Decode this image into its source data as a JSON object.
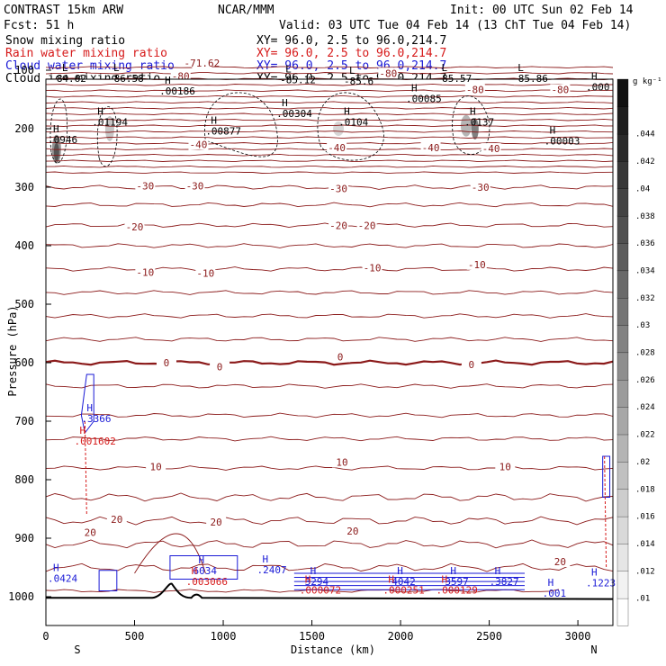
{
  "header": {
    "model": "CONTRAST 15km ARW",
    "org": "NCAR/MMM",
    "init": "Init: 00 UTC Sun 02 Feb 14",
    "fcst": "Fcst:    51 h",
    "valid": "Valid: 03 UTC Tue 04 Feb 14 (13 ChT Tue 04 Feb 14)",
    "lines": [
      {
        "label": "Snow mixing ratio",
        "xy": "XY=  96.0,  2.5 to  96.0,214.7",
        "color": "#000000"
      },
      {
        "label": "Rain water mixing ratio",
        "xy": "XY=  96.0,  2.5 to  96.0,214.7",
        "color": "#d61a1a"
      },
      {
        "label": "Cloud water mixing ratio",
        "xy": "XY=  96.0,  2.5 to  96.0,214.7",
        "color": "#1a1ad6"
      },
      {
        "label": "Cloud ice mixing ratio",
        "xy": "XY=  96.0,  2.5 to  96.0,214.7",
        "color": "#000000"
      }
    ]
  },
  "colorbar": {
    "unit": "g kg⁻¹",
    "ticks": [
      ".01",
      ".012",
      ".014",
      ".016",
      ".018",
      ".02",
      ".022",
      ".024",
      ".026",
      ".028",
      ".03",
      ".032",
      ".034",
      ".036",
      ".038",
      ".04",
      ".042",
      ".044"
    ]
  },
  "chart_data": {
    "type": "contour",
    "xlabel": "Distance (km)",
    "ylabel": "Pressure (hPa)",
    "xlim": [
      0,
      3200
    ],
    "ylim": [
      1050,
      50
    ],
    "xticks": [
      0,
      500,
      1000,
      1500,
      2000,
      2500,
      3000
    ],
    "xtick_labels": [
      "0",
      "500",
      "1000",
      "1500",
      "2000",
      "2500",
      "3000"
    ],
    "yticks": [
      100,
      200,
      300,
      400,
      500,
      600,
      700,
      800,
      900,
      1000
    ],
    "ytick_labels": [
      "100",
      "200",
      "300",
      "400",
      "500",
      "600",
      "700",
      "800",
      "900",
      "1000"
    ],
    "end_labels": {
      "left": "S",
      "right": "N"
    },
    "temperature_contours": [
      {
        "label": "-80",
        "x": 760,
        "p": 110
      },
      {
        "label": "-80",
        "x": 1930,
        "p": 105
      },
      {
        "label": "-80",
        "x": 2420,
        "p": 133
      },
      {
        "label": "-80",
        "x": 2900,
        "p": 133
      },
      {
        "label": "-71.62",
        "x": 880,
        "p": 88
      },
      {
        "label": "-40",
        "x": 860,
        "p": 227
      },
      {
        "label": "-40",
        "x": 1640,
        "p": 232
      },
      {
        "label": "-40",
        "x": 2170,
        "p": 232
      },
      {
        "label": "-40",
        "x": 2510,
        "p": 234
      },
      {
        "label": "-30",
        "x": 560,
        "p": 298
      },
      {
        "label": "-30",
        "x": 840,
        "p": 298
      },
      {
        "label": "-30",
        "x": 1650,
        "p": 302
      },
      {
        "label": "-30",
        "x": 2450,
        "p": 300
      },
      {
        "label": "-20",
        "x": 500,
        "p": 368
      },
      {
        "label": "-20",
        "x": 1650,
        "p": 365
      },
      {
        "label": "-20",
        "x": 1810,
        "p": 365
      },
      {
        "label": "-10",
        "x": 560,
        "p": 445
      },
      {
        "label": "-10",
        "x": 900,
        "p": 447
      },
      {
        "label": "-10",
        "x": 1840,
        "p": 438
      },
      {
        "label": "-10",
        "x": 2430,
        "p": 432
      },
      {
        "label": "0",
        "x": 680,
        "p": 600
      },
      {
        "label": "0",
        "x": 980,
        "p": 607
      },
      {
        "label": "0",
        "x": 1660,
        "p": 590
      },
      {
        "label": "0",
        "x": 2400,
        "p": 603
      },
      {
        "label": "10",
        "x": 620,
        "p": 778
      },
      {
        "label": "10",
        "x": 1670,
        "p": 770
      },
      {
        "label": "10",
        "x": 2590,
        "p": 778
      },
      {
        "label": "20",
        "x": 400,
        "p": 868
      },
      {
        "label": "20",
        "x": 250,
        "p": 890
      },
      {
        "label": "20",
        "x": 960,
        "p": 872
      },
      {
        "label": "20",
        "x": 1730,
        "p": 888
      },
      {
        "label": "20",
        "x": 2900,
        "p": 940
      }
    ],
    "extrema": [
      {
        "type": "L",
        "value": "84.62",
        "x": 60,
        "p": 115,
        "field": "temperature"
      },
      {
        "type": "L",
        "value": "-86.58",
        "x": 350,
        "p": 115,
        "field": "temperature"
      },
      {
        "type": "L",
        "value": "-85.12",
        "x": 1320,
        "p": 118,
        "field": "temperature"
      },
      {
        "type": "L",
        "value": "-85.6",
        "x": 1680,
        "p": 120,
        "field": "temperature"
      },
      {
        "type": "L",
        "value": "-85.57",
        "x": 2200,
        "p": 115,
        "field": "temperature"
      },
      {
        "type": "L",
        "value": "-85.86",
        "x": 2630,
        "p": 115,
        "field": "temperature"
      },
      {
        "type": "H",
        "value": ".00186",
        "x": 640,
        "p": 137,
        "field": "snow"
      },
      {
        "type": "H",
        "value": ".00085",
        "x": 2030,
        "p": 150,
        "field": "snow"
      },
      {
        "type": "H",
        "value": ".000",
        "x": 3100,
        "p": 130,
        "field": "snow"
      },
      {
        "type": "H",
        "value": ".01194",
        "x": 260,
        "p": 190,
        "field": "snow"
      },
      {
        "type": "H",
        "value": ".00304",
        "x": 1300,
        "p": 175,
        "field": "snow"
      },
      {
        "type": "H",
        "value": ".0104",
        "x": 1650,
        "p": 190,
        "field": "snow"
      },
      {
        "type": "H",
        "value": ".0137",
        "x": 2360,
        "p": 190,
        "field": "snow"
      },
      {
        "type": "H",
        "value": ".00877",
        "x": 900,
        "p": 205,
        "field": "snow"
      },
      {
        "type": "H",
        "value": ".0946",
        "x": 0,
        "p": 220,
        "field": "snow"
      },
      {
        "type": "H",
        "value": ".00003",
        "x": 2810,
        "p": 222,
        "field": "snow"
      },
      {
        "type": "H",
        "value": ".3366",
        "x": 200,
        "p": 697,
        "field": "cloud_water"
      },
      {
        "type": "H",
        "value": ".001602",
        "x": 160,
        "p": 735,
        "field": "rain"
      },
      {
        "type": "H",
        "value": "6034",
        "x": 830,
        "p": 957,
        "field": "cloud_water"
      },
      {
        "type": "H",
        "value": ".003066",
        "x": 790,
        "p": 975,
        "field": "rain"
      },
      {
        "type": "H",
        "value": ".2407",
        "x": 1190,
        "p": 955,
        "field": "cloud_water"
      },
      {
        "type": "H",
        "value": "3294",
        "x": 1460,
        "p": 975,
        "field": "cloud_water"
      },
      {
        "type": "H",
        "value": ".000072",
        "x": 1430,
        "p": 990,
        "field": "rain"
      },
      {
        "type": "H",
        "value": "4042",
        "x": 1950,
        "p": 975,
        "field": "cloud_water"
      },
      {
        "type": "H",
        "value": ".000251",
        "x": 1900,
        "p": 990,
        "field": "rain"
      },
      {
        "type": "H",
        "value": "3597",
        "x": 2250,
        "p": 975,
        "field": "cloud_water"
      },
      {
        "type": "H",
        "value": ".000129",
        "x": 2200,
        "p": 990,
        "field": "rain"
      },
      {
        "type": "H",
        "value": ".3827",
        "x": 2500,
        "p": 975,
        "field": "cloud_water"
      },
      {
        "type": "H",
        "value": ".001",
        "x": 2800,
        "p": 995,
        "field": "cloud_water"
      },
      {
        "type": "H",
        "value": ".1223",
        "x": 3050,
        "p": 978,
        "field": "cloud_water"
      },
      {
        "type": "H",
        "value": ".0424",
        "x": 0,
        "p": 970,
        "field": "cloud_water"
      }
    ]
  }
}
